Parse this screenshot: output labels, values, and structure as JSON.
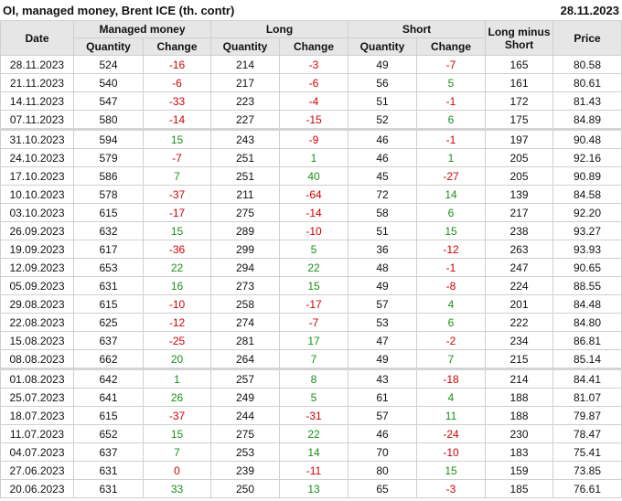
{
  "header": {
    "title": "OI, managed money, Brent ICE (th. contr)",
    "date": "28.11.2023"
  },
  "colors": {
    "negative": "#d00000",
    "positive": "#1a8f1a",
    "header_bg": "#e6e6e6"
  },
  "columns": {
    "date": "Date",
    "managed_money": "Managed money",
    "long": "Long",
    "short": "Short",
    "long_minus_short": "Long minus Short",
    "price": "Price",
    "quantity": "Quantity",
    "change": "Change"
  },
  "rows": [
    {
      "date": "28.11.2023",
      "mm_qty": "524",
      "mm_chg": "-16",
      "long_qty": "214",
      "long_chg": "-3",
      "short_qty": "49",
      "short_chg": "-7",
      "lms": "165",
      "price": "80.58"
    },
    {
      "date": "21.11.2023",
      "mm_qty": "540",
      "mm_chg": "-6",
      "long_qty": "217",
      "long_chg": "-6",
      "short_qty": "56",
      "short_chg": "5",
      "lms": "161",
      "price": "80.61"
    },
    {
      "date": "14.11.2023",
      "mm_qty": "547",
      "mm_chg": "-33",
      "long_qty": "223",
      "long_chg": "-4",
      "short_qty": "51",
      "short_chg": "-1",
      "lms": "172",
      "price": "81.43"
    },
    {
      "date": "07.11.2023",
      "mm_qty": "580",
      "mm_chg": "-14",
      "long_qty": "227",
      "long_chg": "-15",
      "short_qty": "52",
      "short_chg": "6",
      "lms": "175",
      "price": "84.89"
    },
    {
      "date": "31.10.2023",
      "mm_qty": "594",
      "mm_chg": "15",
      "long_qty": "243",
      "long_chg": "-9",
      "short_qty": "46",
      "short_chg": "-1",
      "lms": "197",
      "price": "90.48",
      "month_start": true
    },
    {
      "date": "24.10.2023",
      "mm_qty": "579",
      "mm_chg": "-7",
      "long_qty": "251",
      "long_chg": "1",
      "short_qty": "46",
      "short_chg": "1",
      "lms": "205",
      "price": "92.16"
    },
    {
      "date": "17.10.2023",
      "mm_qty": "586",
      "mm_chg": "7",
      "long_qty": "251",
      "long_chg": "40",
      "short_qty": "45",
      "short_chg": "-27",
      "lms": "205",
      "price": "90.89"
    },
    {
      "date": "10.10.2023",
      "mm_qty": "578",
      "mm_chg": "-37",
      "long_qty": "211",
      "long_chg": "-64",
      "short_qty": "72",
      "short_chg": "14",
      "lms": "139",
      "price": "84.58"
    },
    {
      "date": "03.10.2023",
      "mm_qty": "615",
      "mm_chg": "-17",
      "long_qty": "275",
      "long_chg": "-14",
      "short_qty": "58",
      "short_chg": "6",
      "lms": "217",
      "price": "92.20"
    },
    {
      "date": "26.09.2023",
      "mm_qty": "632",
      "mm_chg": "15",
      "long_qty": "289",
      "long_chg": "-10",
      "short_qty": "51",
      "short_chg": "15",
      "lms": "238",
      "price": "93.27"
    },
    {
      "date": "19.09.2023",
      "mm_qty": "617",
      "mm_chg": "-36",
      "long_qty": "299",
      "long_chg": "5",
      "short_qty": "36",
      "short_chg": "-12",
      "lms": "263",
      "price": "93.93"
    },
    {
      "date": "12.09.2023",
      "mm_qty": "653",
      "mm_chg": "22",
      "long_qty": "294",
      "long_chg": "22",
      "short_qty": "48",
      "short_chg": "-1",
      "lms": "247",
      "price": "90.65"
    },
    {
      "date": "05.09.2023",
      "mm_qty": "631",
      "mm_chg": "16",
      "long_qty": "273",
      "long_chg": "15",
      "short_qty": "49",
      "short_chg": "-8",
      "lms": "224",
      "price": "88.55"
    },
    {
      "date": "29.08.2023",
      "mm_qty": "615",
      "mm_chg": "-10",
      "long_qty": "258",
      "long_chg": "-17",
      "short_qty": "57",
      "short_chg": "4",
      "lms": "201",
      "price": "84.48"
    },
    {
      "date": "22.08.2023",
      "mm_qty": "625",
      "mm_chg": "-12",
      "long_qty": "274",
      "long_chg": "-7",
      "short_qty": "53",
      "short_chg": "6",
      "lms": "222",
      "price": "84.80"
    },
    {
      "date": "15.08.2023",
      "mm_qty": "637",
      "mm_chg": "-25",
      "long_qty": "281",
      "long_chg": "17",
      "short_qty": "47",
      "short_chg": "-2",
      "lms": "234",
      "price": "86.81"
    },
    {
      "date": "08.08.2023",
      "mm_qty": "662",
      "mm_chg": "20",
      "long_qty": "264",
      "long_chg": "7",
      "short_qty": "49",
      "short_chg": "7",
      "lms": "215",
      "price": "85.14"
    },
    {
      "date": "01.08.2023",
      "mm_qty": "642",
      "mm_chg": "1",
      "long_qty": "257",
      "long_chg": "8",
      "short_qty": "43",
      "short_chg": "-18",
      "lms": "214",
      "price": "84.41",
      "month_start": true
    },
    {
      "date": "25.07.2023",
      "mm_qty": "641",
      "mm_chg": "26",
      "long_qty": "249",
      "long_chg": "5",
      "short_qty": "61",
      "short_chg": "4",
      "lms": "188",
      "price": "81.07"
    },
    {
      "date": "18.07.2023",
      "mm_qty": "615",
      "mm_chg": "-37",
      "long_qty": "244",
      "long_chg": "-31",
      "short_qty": "57",
      "short_chg": "11",
      "lms": "188",
      "price": "79.87"
    },
    {
      "date": "11.07.2023",
      "mm_qty": "652",
      "mm_chg": "15",
      "long_qty": "275",
      "long_chg": "22",
      "short_qty": "46",
      "short_chg": "-24",
      "lms": "230",
      "price": "78.47"
    },
    {
      "date": "04.07.2023",
      "mm_qty": "637",
      "mm_chg": "7",
      "long_qty": "253",
      "long_chg": "14",
      "short_qty": "70",
      "short_chg": "-10",
      "lms": "183",
      "price": "75.41"
    },
    {
      "date": "27.06.2023",
      "mm_qty": "631",
      "mm_chg": "0",
      "long_qty": "239",
      "long_chg": "-11",
      "short_qty": "80",
      "short_chg": "15",
      "lms": "159",
      "price": "73.85"
    },
    {
      "date": "20.06.2023",
      "mm_qty": "631",
      "mm_chg": "33",
      "long_qty": "250",
      "long_chg": "13",
      "short_qty": "65",
      "short_chg": "-3",
      "lms": "185",
      "price": "76.61"
    }
  ]
}
